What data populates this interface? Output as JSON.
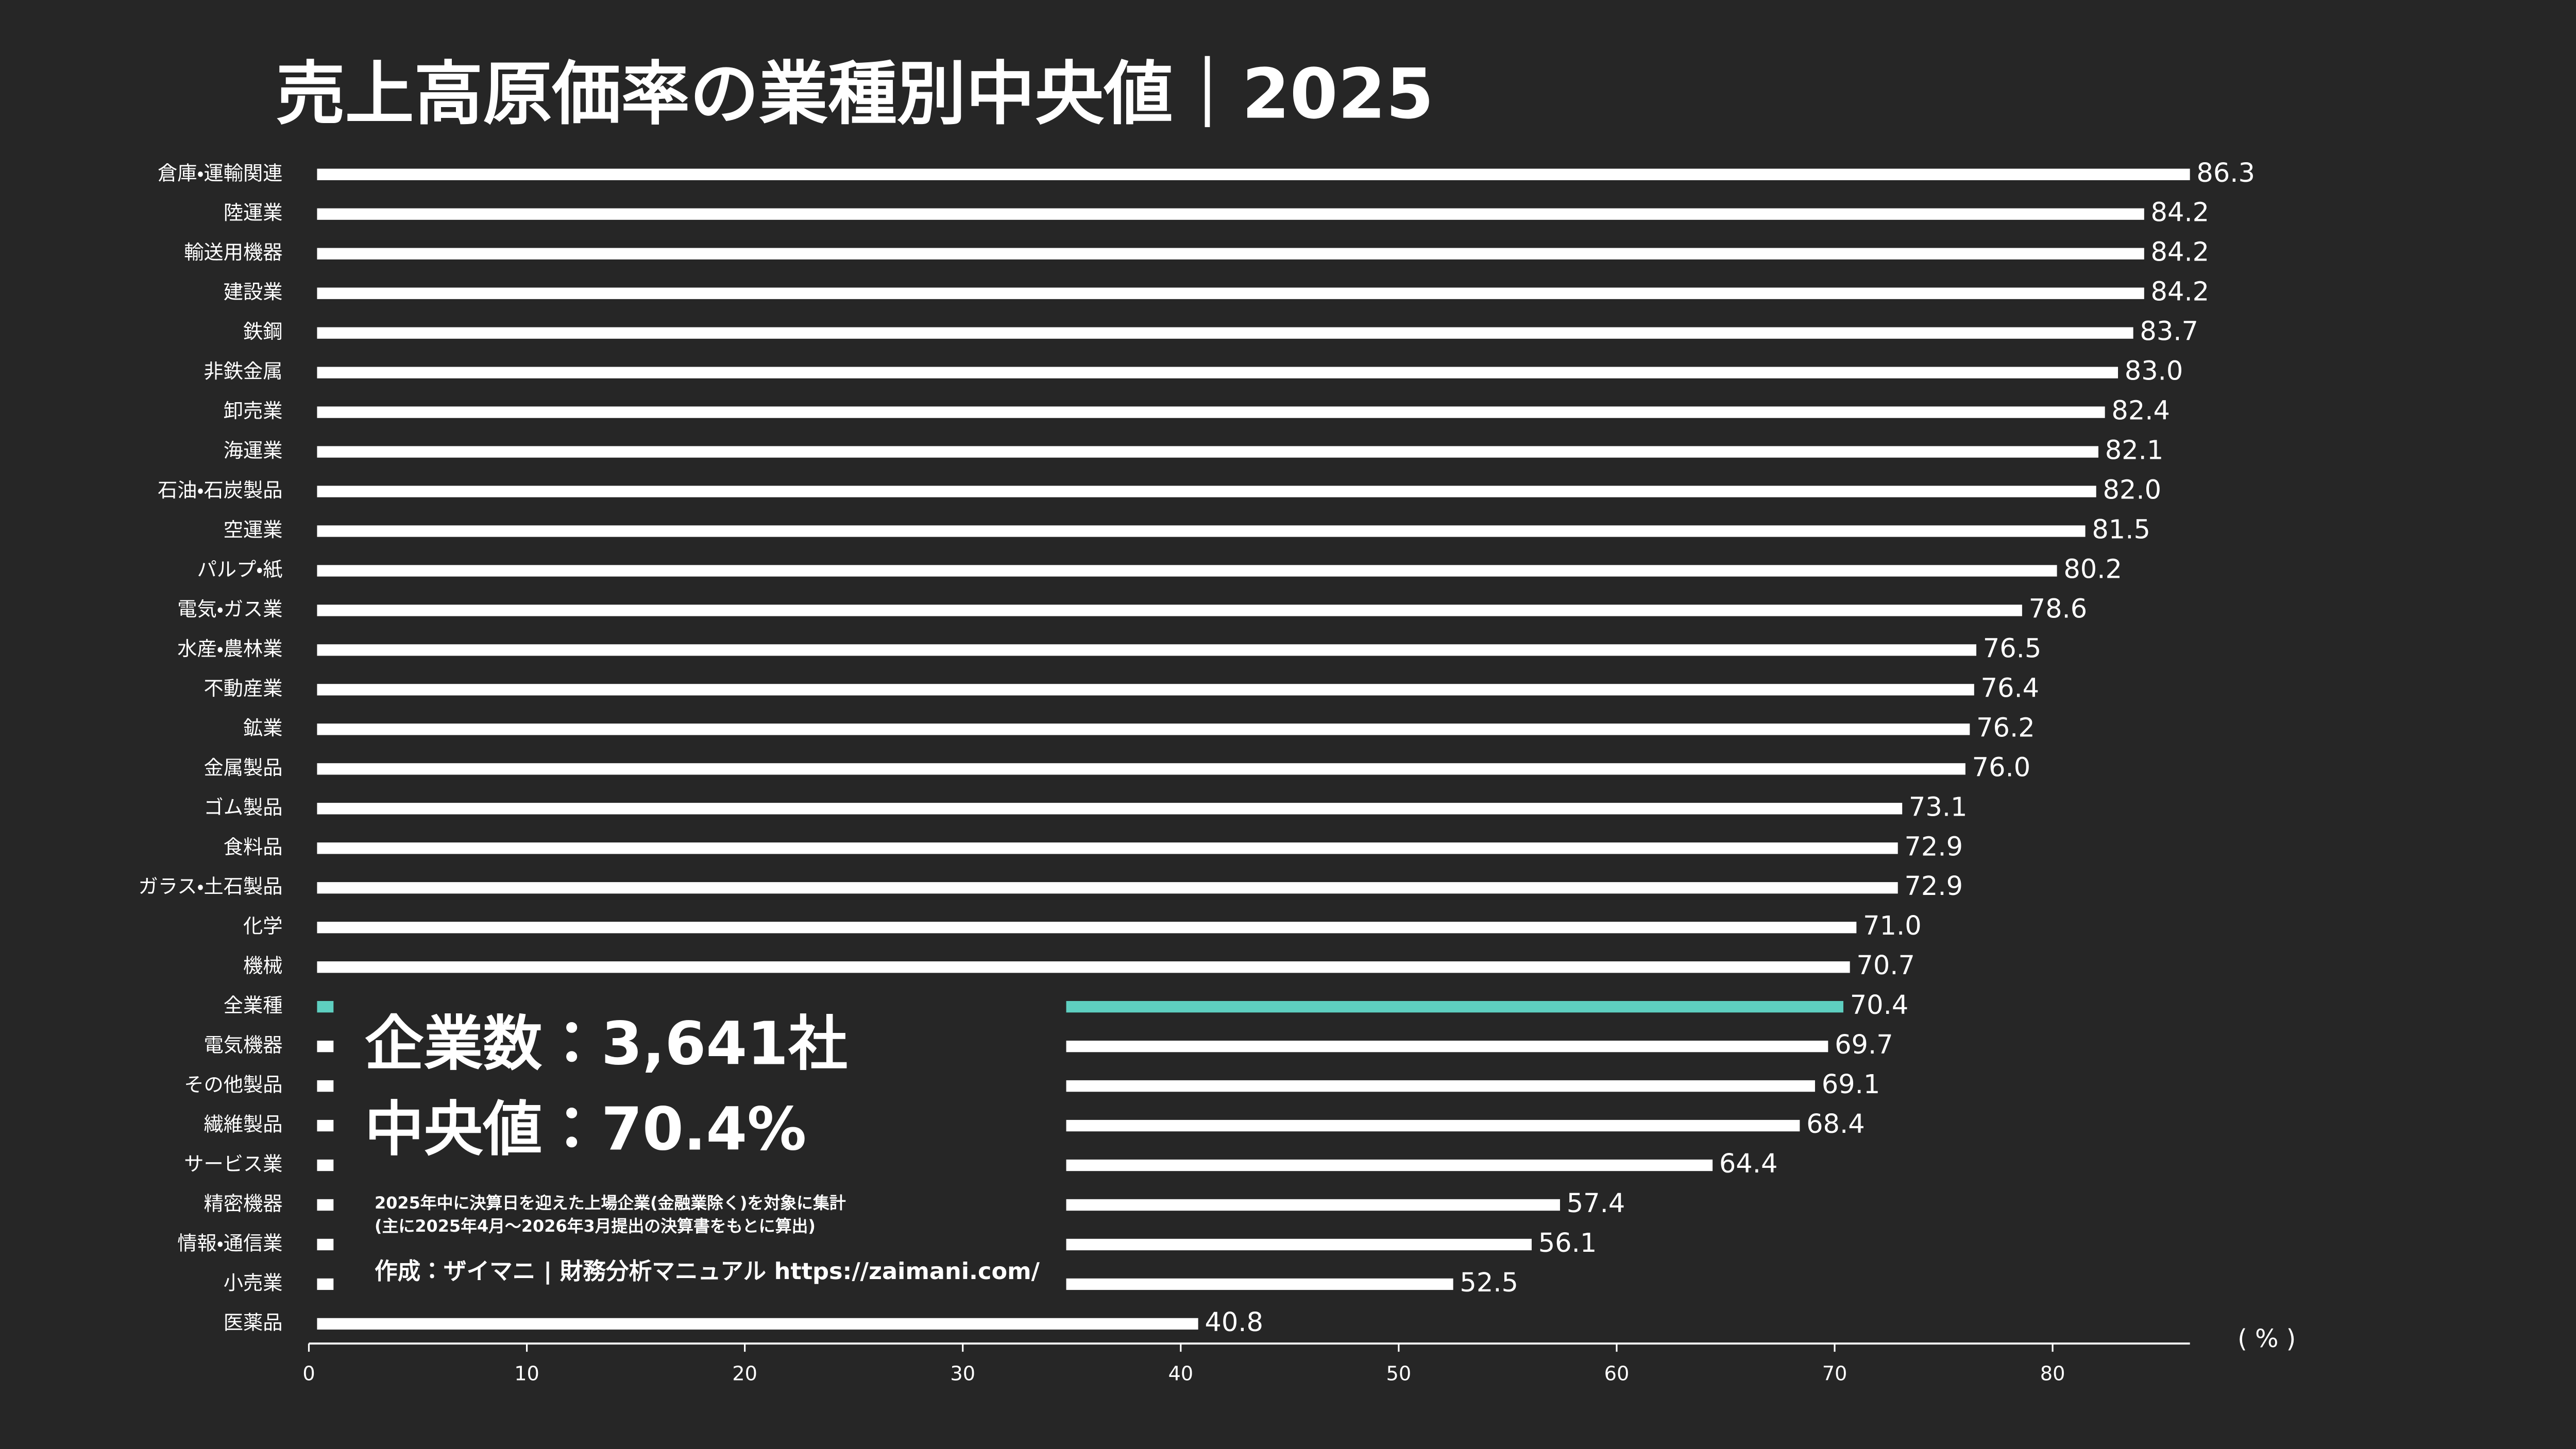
{
  "chart_data": {
    "type": "hbar",
    "title": "売上高原価率の業種別中央値｜2025",
    "x_label": "( % )",
    "categories": [
      "倉庫・運輸関連",
      "陸運業",
      "輸送用機器",
      "建設業",
      "鉄鋼",
      "非鉄金属",
      "卸売業",
      "海運業",
      "石油・石炭製品",
      "空運業",
      "パルプ・紙",
      "電気・ガス業",
      "水産・農林業",
      "不動産業",
      "鉱業",
      "金属製品",
      "ゴム製品",
      "食料品",
      "ガラス・土石製品",
      "化学",
      "機械",
      "全業種",
      "電気機器",
      "その他製品",
      "繊維製品",
      "サービス業",
      "精密機器",
      "情報・通信業",
      "小売業",
      "医薬品"
    ],
    "values": [
      86.3,
      84.2,
      84.2,
      84.2,
      83.7,
      83.0,
      82.4,
      82.1,
      82.0,
      81.5,
      80.2,
      78.6,
      76.5,
      76.4,
      76.2,
      76.0,
      73.1,
      72.9,
      72.9,
      71.0,
      70.7,
      70.4,
      69.7,
      69.1,
      68.4,
      64.4,
      57.4,
      56.1,
      52.5,
      40.8
    ],
    "value_labels": [
      "86.3",
      "84.2",
      "84.2",
      "84.2",
      "83.7",
      "83.0",
      "82.4",
      "82.1",
      "82.0",
      "81.5",
      "80.2",
      "78.6",
      "76.5",
      "76.4",
      "76.2",
      "76.0",
      "73.1",
      "72.9",
      "72.9",
      "71.0",
      "70.7",
      "70.4",
      "69.7",
      "69.1",
      "68.4",
      "64.4",
      "57.4",
      "56.1",
      "52.5",
      "40.8"
    ],
    "colors": [
      "#ffffff",
      "#ffffff",
      "#ffffff",
      "#ffffff",
      "#ffffff",
      "#ffffff",
      "#ffffff",
      "#ffffff",
      "#ffffff",
      "#ffffff",
      "#ffffff",
      "#ffffff",
      "#ffffff",
      "#ffffff",
      "#ffffff",
      "#ffffff",
      "#ffffff",
      "#ffffff",
      "#ffffff",
      "#ffffff",
      "#ffffff",
      "#5ecfc0",
      "#ffffff",
      "#ffffff",
      "#ffffff",
      "#ffffff",
      "#ffffff",
      "#ffffff",
      "#ffffff",
      "#ffffff"
    ],
    "xlim": [
      0,
      86.3
    ],
    "xticks": [
      0,
      10,
      20,
      30,
      40,
      50,
      60,
      70,
      80
    ],
    "annotations": [
      "企業数：3,641社",
      "中央値：70.4%",
      "2025年中に決算日を迎えた上場企業(金融業除く)を対象に集計",
      "(主に2025年4月〜2026年3月提出の決算書をもとに算出)",
      "作成：ザイマニ | 財務分析マニュアル https://zaimani.com/"
    ],
    "annotation_colors": [
      "#ffffff",
      "#5ecfc0",
      "#aaaaaa",
      "#aaaaaa",
      "#aaaaaa"
    ]
  }
}
